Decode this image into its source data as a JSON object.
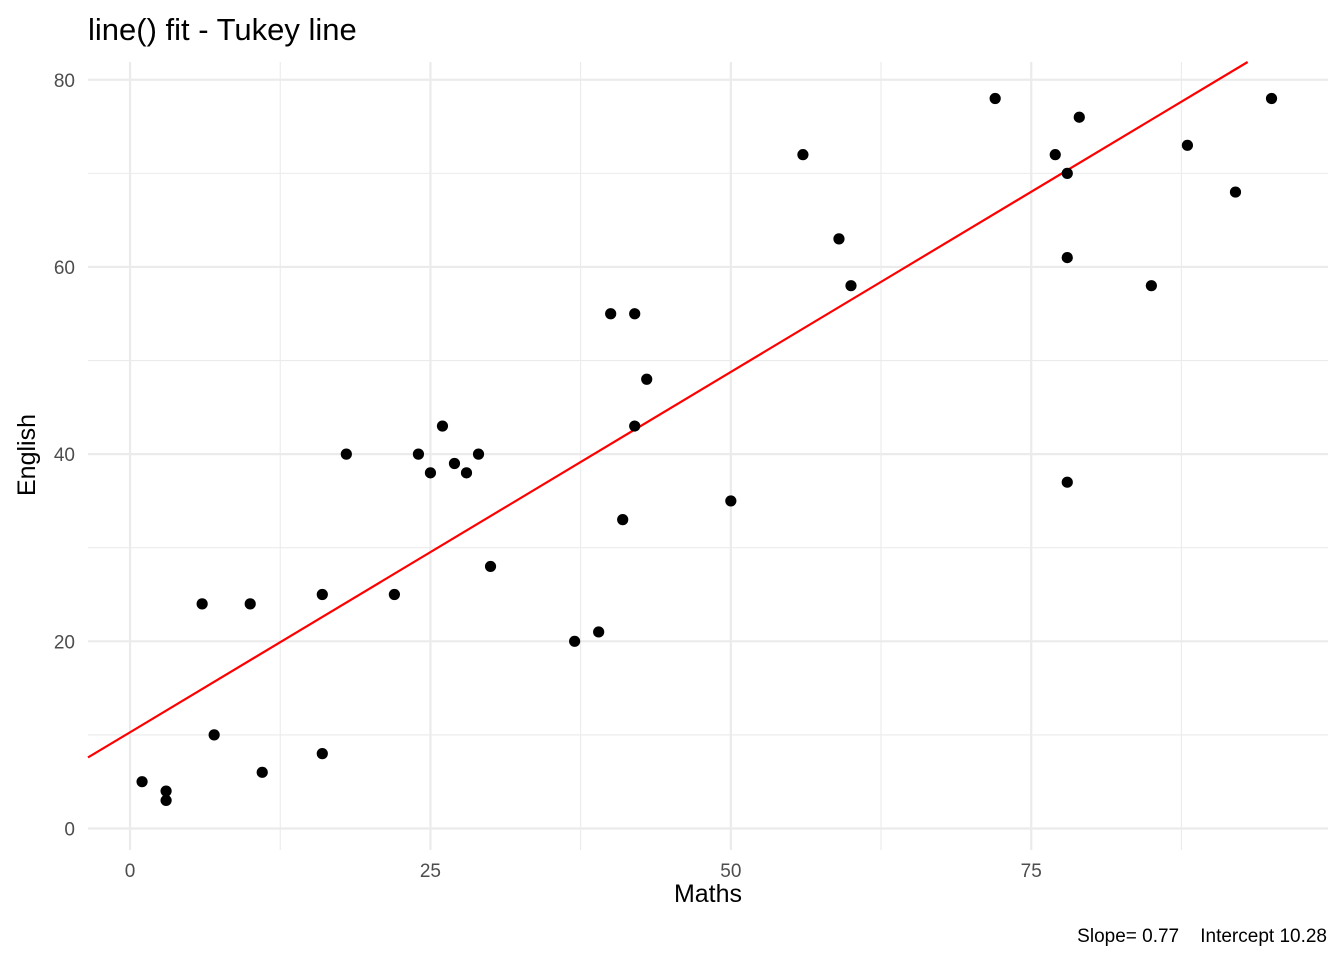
{
  "chart_data": {
    "type": "scatter",
    "title": "line() fit - Tukey line",
    "xlabel": "Maths",
    "ylabel": "English",
    "caption": "Slope= 0.77    Intercept 10.28",
    "xlim": [
      -3.5,
      99.7
    ],
    "ylim": [
      -2.3,
      81.9
    ],
    "x_ticks": [
      0,
      25,
      50,
      75
    ],
    "x_tick_labels": [
      "0",
      "25",
      "50",
      "75"
    ],
    "x_minor_ticks": [
      12.5,
      37.5,
      62.5,
      87.5
    ],
    "y_ticks": [
      0,
      20,
      40,
      60,
      80
    ],
    "y_tick_labels": [
      "0",
      "20",
      "40",
      "60",
      "80"
    ],
    "y_minor_ticks": [
      10,
      30,
      50,
      70
    ],
    "grid": true,
    "point_color": "#000000",
    "line_color": "#ff0000",
    "fit_line": {
      "slope": 0.77,
      "intercept": 10.28
    },
    "points": [
      {
        "x": 1,
        "y": 5
      },
      {
        "x": 3,
        "y": 4
      },
      {
        "x": 3,
        "y": 3
      },
      {
        "x": 6,
        "y": 24
      },
      {
        "x": 7,
        "y": 10
      },
      {
        "x": 10,
        "y": 24
      },
      {
        "x": 11,
        "y": 6
      },
      {
        "x": 16,
        "y": 25
      },
      {
        "x": 16,
        "y": 8
      },
      {
        "x": 18,
        "y": 40
      },
      {
        "x": 22,
        "y": 25
      },
      {
        "x": 24,
        "y": 40
      },
      {
        "x": 25,
        "y": 38
      },
      {
        "x": 26,
        "y": 43
      },
      {
        "x": 27,
        "y": 39
      },
      {
        "x": 28,
        "y": 38
      },
      {
        "x": 29,
        "y": 40
      },
      {
        "x": 30,
        "y": 28
      },
      {
        "x": 37,
        "y": 20
      },
      {
        "x": 39,
        "y": 21
      },
      {
        "x": 40,
        "y": 55
      },
      {
        "x": 41,
        "y": 33
      },
      {
        "x": 42,
        "y": 55
      },
      {
        "x": 42,
        "y": 43
      },
      {
        "x": 43,
        "y": 48
      },
      {
        "x": 50,
        "y": 35
      },
      {
        "x": 56,
        "y": 72
      },
      {
        "x": 59,
        "y": 63
      },
      {
        "x": 60,
        "y": 58
      },
      {
        "x": 72,
        "y": 78
      },
      {
        "x": 77,
        "y": 72
      },
      {
        "x": 78,
        "y": 70
      },
      {
        "x": 78,
        "y": 61
      },
      {
        "x": 78,
        "y": 37
      },
      {
        "x": 79,
        "y": 76
      },
      {
        "x": 85,
        "y": 58
      },
      {
        "x": 88,
        "y": 73
      },
      {
        "x": 92,
        "y": 68
      },
      {
        "x": 95,
        "y": 78
      }
    ]
  }
}
